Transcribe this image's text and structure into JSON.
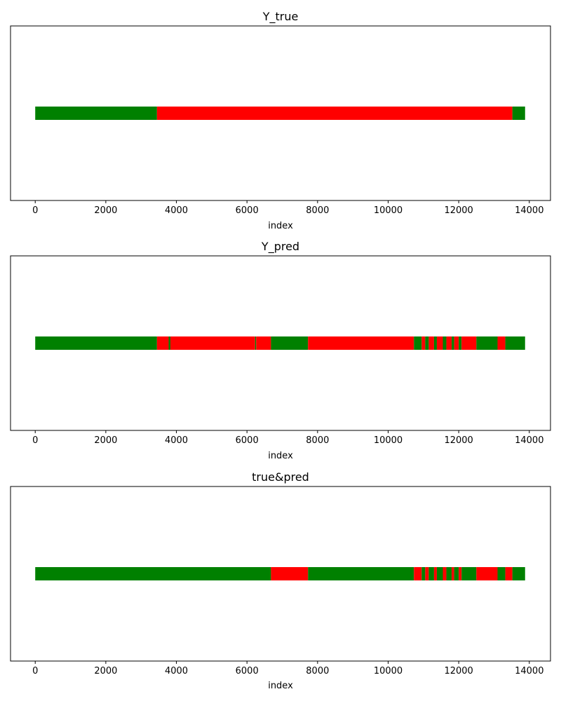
{
  "colors": {
    "positive": "#008000",
    "negative": "#ff0000",
    "axes": "#000000"
  },
  "chart_data": [
    {
      "type": "bar",
      "orientation": "horizontal-band",
      "title": "Y_true",
      "xlabel": "index",
      "xlim": [
        -700,
        14600
      ],
      "xticks": [
        0,
        2000,
        4000,
        6000,
        8000,
        10000,
        12000,
        14000
      ],
      "grid": false,
      "segments": [
        {
          "start": 0,
          "end": 3450,
          "class": "green"
        },
        {
          "start": 3450,
          "end": 13520,
          "class": "red"
        },
        {
          "start": 13520,
          "end": 13880,
          "class": "green"
        }
      ]
    },
    {
      "type": "bar",
      "orientation": "horizontal-band",
      "title": "Y_pred",
      "xlabel": "index",
      "xlim": [
        -700,
        14600
      ],
      "xticks": [
        0,
        2000,
        4000,
        6000,
        8000,
        10000,
        12000,
        14000
      ],
      "grid": false,
      "segments": [
        {
          "start": 0,
          "end": 3450,
          "class": "green"
        },
        {
          "start": 3450,
          "end": 3780,
          "class": "red"
        },
        {
          "start": 3780,
          "end": 3830,
          "class": "green"
        },
        {
          "start": 3830,
          "end": 6230,
          "class": "red"
        },
        {
          "start": 6230,
          "end": 6260,
          "class": "green"
        },
        {
          "start": 6260,
          "end": 6680,
          "class": "red"
        },
        {
          "start": 6680,
          "end": 7730,
          "class": "green"
        },
        {
          "start": 7730,
          "end": 10730,
          "class": "red"
        },
        {
          "start": 10730,
          "end": 10950,
          "class": "green"
        },
        {
          "start": 10950,
          "end": 11050,
          "class": "red"
        },
        {
          "start": 11050,
          "end": 11150,
          "class": "green"
        },
        {
          "start": 11150,
          "end": 11300,
          "class": "red"
        },
        {
          "start": 11300,
          "end": 11380,
          "class": "green"
        },
        {
          "start": 11380,
          "end": 11550,
          "class": "red"
        },
        {
          "start": 11550,
          "end": 11650,
          "class": "green"
        },
        {
          "start": 11650,
          "end": 11800,
          "class": "red"
        },
        {
          "start": 11800,
          "end": 11870,
          "class": "green"
        },
        {
          "start": 11870,
          "end": 12000,
          "class": "red"
        },
        {
          "start": 12000,
          "end": 12080,
          "class": "green"
        },
        {
          "start": 12080,
          "end": 12500,
          "class": "red"
        },
        {
          "start": 12500,
          "end": 13100,
          "class": "green"
        },
        {
          "start": 13100,
          "end": 13320,
          "class": "red"
        },
        {
          "start": 13320,
          "end": 13880,
          "class": "green"
        }
      ]
    },
    {
      "type": "bar",
      "orientation": "horizontal-band",
      "title": "true&pred",
      "xlabel": "index",
      "xlim": [
        -700,
        14600
      ],
      "xticks": [
        0,
        2000,
        4000,
        6000,
        8000,
        10000,
        12000,
        14000
      ],
      "grid": false,
      "segments": [
        {
          "start": 0,
          "end": 6680,
          "class": "green"
        },
        {
          "start": 6680,
          "end": 7730,
          "class": "red"
        },
        {
          "start": 7730,
          "end": 10730,
          "class": "green"
        },
        {
          "start": 10730,
          "end": 10950,
          "class": "red"
        },
        {
          "start": 10950,
          "end": 11050,
          "class": "green"
        },
        {
          "start": 11050,
          "end": 11150,
          "class": "red"
        },
        {
          "start": 11150,
          "end": 11300,
          "class": "green"
        },
        {
          "start": 11300,
          "end": 11380,
          "class": "red"
        },
        {
          "start": 11380,
          "end": 11550,
          "class": "green"
        },
        {
          "start": 11550,
          "end": 11650,
          "class": "red"
        },
        {
          "start": 11650,
          "end": 11800,
          "class": "green"
        },
        {
          "start": 11800,
          "end": 11870,
          "class": "red"
        },
        {
          "start": 11870,
          "end": 12000,
          "class": "green"
        },
        {
          "start": 12000,
          "end": 12080,
          "class": "red"
        },
        {
          "start": 12080,
          "end": 12500,
          "class": "green"
        },
        {
          "start": 12500,
          "end": 13100,
          "class": "red"
        },
        {
          "start": 13100,
          "end": 13320,
          "class": "green"
        },
        {
          "start": 13320,
          "end": 13520,
          "class": "red"
        },
        {
          "start": 13520,
          "end": 13880,
          "class": "green"
        }
      ]
    }
  ]
}
